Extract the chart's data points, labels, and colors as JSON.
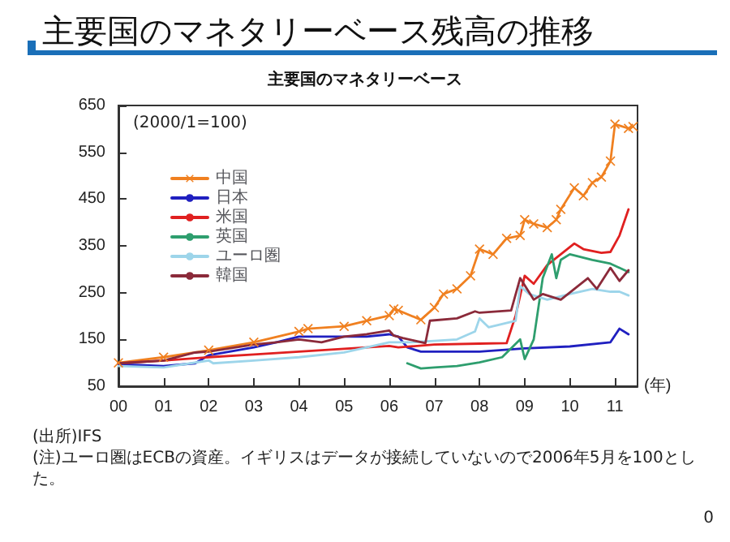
{
  "chart_data": {
    "type": "line",
    "title": "主要国のマネタリーベース残高の推移",
    "subtitle": "主要国のマネタリーベース",
    "xlabel": "(年)",
    "annotations": [
      "(2000/1=100)",
      "(出所)IFS",
      "(注)ユーロ圏はECBの資産。イギリスはデータが接続していないので2006年5月を100とした。",
      "0"
    ],
    "xlim": [
      2000,
      2011.5
    ],
    "xticks": [
      {
        "value": 2000,
        "label": "00"
      },
      {
        "value": 2001,
        "label": "01"
      },
      {
        "value": 2002,
        "label": "02"
      },
      {
        "value": 2003,
        "label": "03"
      },
      {
        "value": 2004,
        "label": "04"
      },
      {
        "value": 2005,
        "label": "05"
      },
      {
        "value": 2006,
        "label": "06"
      },
      {
        "value": 2007,
        "label": "07"
      },
      {
        "value": 2008,
        "label": "08"
      },
      {
        "value": 2009,
        "label": "09"
      },
      {
        "value": 2010,
        "label": "10"
      },
      {
        "value": 2011,
        "label": "11"
      }
    ],
    "ylim": [
      50,
      650
    ],
    "yticks": [
      50,
      150,
      250,
      350,
      450,
      550,
      650
    ],
    "legend": "top left",
    "series": [
      {
        "name": "中国",
        "color": "#f08020",
        "marker": "cross",
        "x": [
          2000,
          2001,
          2002,
          2003,
          2004,
          2004.2,
          2005,
          2005.5,
          2006,
          2006.1,
          2006.2,
          2006.7,
          2007,
          2007.2,
          2007.5,
          2007.8,
          2008,
          2008.3,
          2008.6,
          2008.9,
          2009,
          2009.2,
          2009.5,
          2009.7,
          2009.8,
          2010.1,
          2010.3,
          2010.5,
          2010.7,
          2010.9,
          2011,
          2011.3,
          2011.4
        ],
        "values": [
          100,
          112,
          127,
          144,
          167,
          173,
          178,
          190,
          201,
          215,
          212,
          192,
          218,
          247,
          258,
          286,
          343,
          332,
          366,
          372,
          406,
          397,
          389,
          406,
          428,
          474,
          457,
          485,
          497,
          531,
          610,
          601,
          605
        ]
      },
      {
        "name": "日本",
        "color": "#2020c0",
        "marker": "none",
        "x": [
          2000,
          2001,
          2001.7,
          2002,
          2003,
          2003.5,
          2004,
          2005,
          2005.5,
          2006,
          2006.2,
          2006.4,
          2006.7,
          2007,
          2008,
          2009,
          2010,
          2010.9,
          2011.1,
          2011.3
        ],
        "values": [
          97,
          93,
          99,
          116,
          133,
          144,
          156,
          156,
          156,
          161,
          156,
          133,
          124,
          124,
          124,
          131,
          135,
          144,
          173,
          161
        ]
      },
      {
        "name": "米国",
        "color": "#e02020",
        "marker": "none",
        "x": [
          2000,
          2001,
          2002,
          2003,
          2004,
          2005,
          2006,
          2006.2,
          2007,
          2008,
          2008.6,
          2008.8,
          2009,
          2009.2,
          2009.5,
          2009.8,
          2010.1,
          2010.3,
          2010.7,
          2010.9,
          2011.1,
          2011.3
        ],
        "values": [
          99,
          105,
          112,
          118,
          124,
          130,
          136,
          133,
          139,
          141,
          142,
          201,
          286,
          269,
          309,
          332,
          355,
          343,
          335,
          337,
          372,
          428
        ]
      },
      {
        "name": "英国",
        "color": "#2e9e6e",
        "marker": "none",
        "x": [
          2006.4,
          2006.7,
          2007,
          2007.5,
          2008,
          2008.5,
          2008.9,
          2009,
          2009.2,
          2009.4,
          2009.6,
          2009.7,
          2009.8,
          2010,
          2010.5,
          2010.9,
          2011.3
        ],
        "values": [
          99,
          88,
          90,
          93,
          101,
          112,
          150,
          108,
          150,
          281,
          332,
          281,
          320,
          332,
          320,
          312,
          294
        ]
      },
      {
        "name": "ユーロ圏",
        "color": "#9dd5ea",
        "marker": "none",
        "x": [
          2000,
          2001,
          2002,
          2002.1,
          2003,
          2004,
          2005,
          2006,
          2006.5,
          2007,
          2007.5,
          2007.9,
          2008,
          2008.2,
          2008.8,
          2008.9,
          2009.1,
          2009.5,
          2010,
          2010.5,
          2010.9,
          2011.1,
          2011.3
        ],
        "values": [
          93,
          90,
          105,
          99,
          105,
          112,
          122,
          144,
          144,
          147,
          150,
          167,
          195,
          176,
          190,
          264,
          247,
          235,
          247,
          258,
          252,
          252,
          244
        ]
      },
      {
        "name": "韓国",
        "color": "#8b2a3a",
        "marker": "none",
        "x": [
          2000,
          2001,
          2001.7,
          2002,
          2003,
          2003.5,
          2004,
          2004.5,
          2005,
          2005.5,
          2006,
          2006.1,
          2006.3,
          2006.8,
          2006.9,
          2007.5,
          2007.9,
          2008,
          2008.7,
          2008.9,
          2009.2,
          2009.4,
          2009.8,
          2010.1,
          2010.4,
          2010.6,
          2010.9,
          2011.1,
          2011.3
        ],
        "values": [
          99,
          105,
          122,
          124,
          139,
          144,
          150,
          144,
          156,
          161,
          169,
          158,
          153,
          142,
          190,
          195,
          210,
          207,
          212,
          281,
          235,
          247,
          235,
          258,
          281,
          258,
          303,
          275,
          298
        ]
      }
    ]
  }
}
